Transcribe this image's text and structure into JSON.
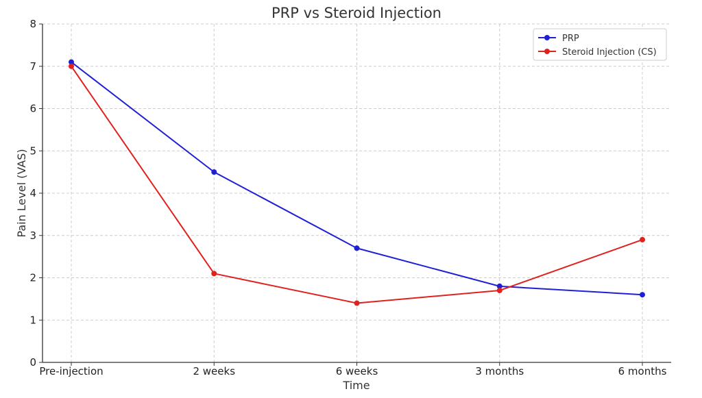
{
  "chart_data": {
    "type": "line",
    "title": "PRP vs Steroid Injection",
    "xlabel": "Time",
    "ylabel": "Pain Level (VAS)",
    "categories": [
      "Pre-injection",
      "2 weeks",
      "6 weeks",
      "3 months",
      "6 months"
    ],
    "ylim": [
      0,
      8
    ],
    "yticks": [
      "0",
      "1",
      "2",
      "3",
      "4",
      "5",
      "6",
      "7",
      "8"
    ],
    "grid": true,
    "legend_position": "top-right",
    "series": [
      {
        "name": "PRP",
        "color": "#1f1fd6",
        "values": [
          7.1,
          4.5,
          2.7,
          1.8,
          1.6
        ]
      },
      {
        "name": "Steroid Injection (CS)",
        "color": "#e0211d",
        "values": [
          7.0,
          2.1,
          1.4,
          1.7,
          2.9
        ]
      }
    ]
  }
}
